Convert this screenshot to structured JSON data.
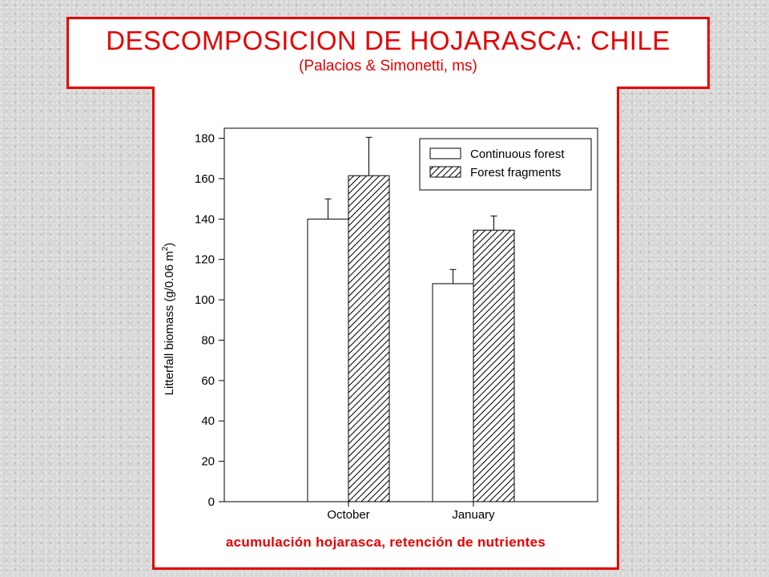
{
  "header": {
    "title": "DESCOMPOSICION DE HOJARASCA: CHILE",
    "subtitle": "(Palacios & Simonetti, ms)"
  },
  "footer": {
    "note": "acumulación hojarasca, retención de nutrientes"
  },
  "colors": {
    "accent": "#e60000",
    "bar_outline": "#000000",
    "bar_fill": "#ffffff"
  },
  "chart_data": {
    "type": "bar",
    "categories": [
      "October",
      "January"
    ],
    "series": [
      {
        "name": "Continuous forest",
        "values": [
          140,
          108
        ],
        "errors": [
          10,
          7
        ],
        "pattern": "solid-white"
      },
      {
        "name": "Forest fragments",
        "values": [
          161.5,
          134.5
        ],
        "errors": [
          19,
          7
        ],
        "pattern": "diagonal-hatch"
      }
    ],
    "ylabel_main": "Litterfall biomass (g/0.06 m",
    "ylabel_sup": "2",
    "ylabel_end": ")",
    "xlabel": "",
    "ylim": [
      0,
      185
    ],
    "yticks": [
      0,
      20,
      40,
      60,
      80,
      100,
      120,
      140,
      160,
      180
    ],
    "legend_position": "top-right",
    "grid": false
  }
}
